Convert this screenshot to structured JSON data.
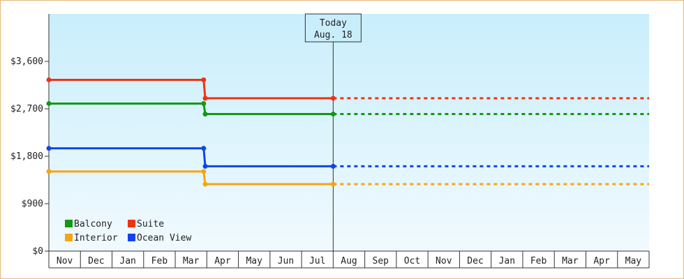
{
  "chart_data": {
    "type": "line",
    "step": true,
    "title": "",
    "xlabel": "",
    "ylabel": "",
    "ylim": [
      0,
      4500
    ],
    "yticks": [
      0,
      900,
      1800,
      2700,
      3600
    ],
    "ytick_labels": [
      "$0",
      "$900",
      "$1,800",
      "$2,700",
      "$3,600"
    ],
    "x_categories": [
      "Nov",
      "Dec",
      "Jan",
      "Feb",
      "Mar",
      "Apr",
      "May",
      "Jun",
      "Jul",
      "Aug",
      "Sep",
      "Oct",
      "Nov",
      "Dec",
      "Jan",
      "Feb",
      "Mar",
      "Apr",
      "May"
    ],
    "today": {
      "line1": "Today",
      "line2": "Aug. 18",
      "x_index": 9.0
    },
    "legend": {
      "position": "bottom-left"
    },
    "series": [
      {
        "name": "Suite",
        "color": "#ee3311",
        "points": [
          {
            "x": 0.0,
            "y": 3250
          },
          {
            "x": 4.9,
            "y": 3250
          },
          {
            "x": 4.95,
            "y": 2900
          },
          {
            "x": 9.0,
            "y": 2900
          }
        ],
        "projected": 2900
      },
      {
        "name": "Balcony",
        "color": "#119911",
        "points": [
          {
            "x": 0.0,
            "y": 2800
          },
          {
            "x": 4.9,
            "y": 2800
          },
          {
            "x": 4.95,
            "y": 2600
          },
          {
            "x": 9.0,
            "y": 2600
          }
        ],
        "projected": 2600
      },
      {
        "name": "Ocean View",
        "color": "#1144ee",
        "points": [
          {
            "x": 0.0,
            "y": 1950
          },
          {
            "x": 4.9,
            "y": 1950
          },
          {
            "x": 4.95,
            "y": 1610
          },
          {
            "x": 9.0,
            "y": 1610
          }
        ],
        "projected": 1610
      },
      {
        "name": "Interior",
        "color": "#f5a511",
        "points": [
          {
            "x": 0.0,
            "y": 1510
          },
          {
            "x": 4.9,
            "y": 1510
          },
          {
            "x": 4.95,
            "y": 1270
          },
          {
            "x": 9.0,
            "y": 1270
          }
        ],
        "projected": 1270
      }
    ],
    "legend_order": [
      "Balcony",
      "Suite",
      "Interior",
      "Ocean View"
    ]
  }
}
